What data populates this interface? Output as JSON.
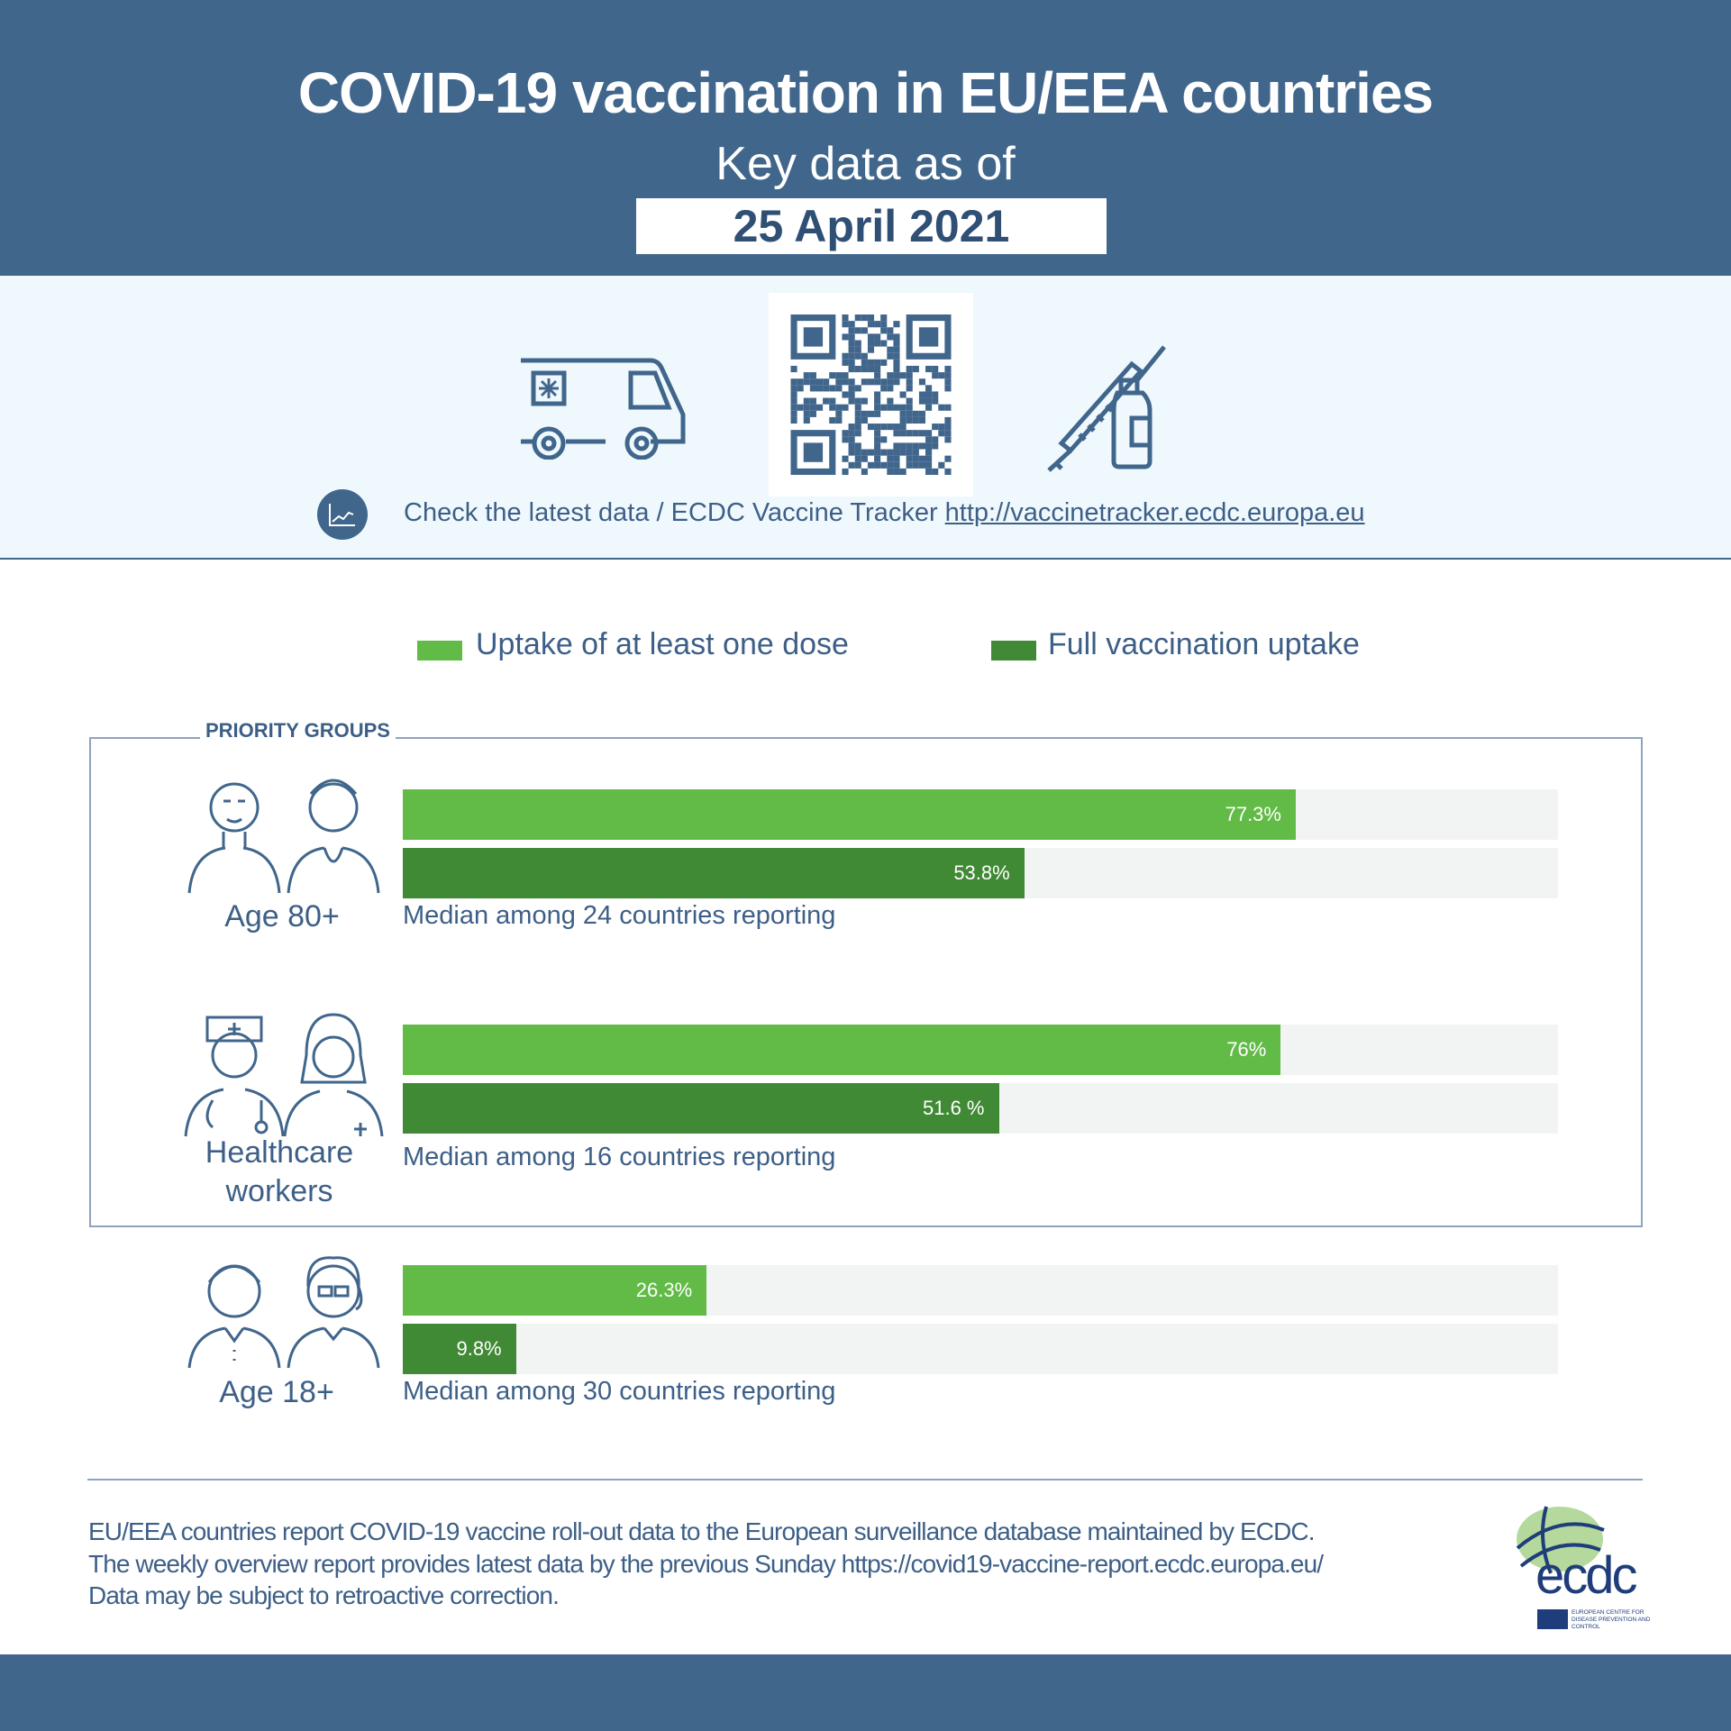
{
  "header": {
    "title": "COVID-19 vaccination in EU/EEA countries",
    "subtitle": "Key data as of",
    "date": "25 April 2021"
  },
  "tracker": {
    "text": "Check the latest data / ECDC Vaccine Tracker",
    "url": "http://vaccinetracker.ecdc.europa.eu"
  },
  "legend": {
    "one_dose": "Uptake of at least one dose",
    "full": "Full vaccination uptake"
  },
  "priority_label": "PRIORITY GROUPS",
  "colors": {
    "one_dose": "#62bb46",
    "full": "#418a35",
    "track": "#f2f4f3",
    "header": "#41668c"
  },
  "chart_data": {
    "type": "bar",
    "orientation": "horizontal",
    "xlim": [
      0,
      100
    ],
    "categories": [
      "Age 80+",
      "Healthcare workers",
      "Age 18+"
    ],
    "series": [
      {
        "name": "Uptake of at least one dose",
        "values": [
          77.3,
          76,
          26.3
        ],
        "labels": [
          "77.3%",
          "76%",
          "26.3%"
        ]
      },
      {
        "name": "Full vaccination uptake",
        "values": [
          53.8,
          51.6,
          9.8
        ],
        "labels": [
          "53.8%",
          "51.6 %",
          "9.8%"
        ]
      }
    ],
    "captions": [
      "Median among 24 countries reporting",
      "Median among 16 countries reporting",
      "Median among 30 countries reporting"
    ],
    "group_labels": [
      [
        "Age 80+"
      ],
      [
        "Healthcare",
        "workers"
      ],
      [
        "Age 18+"
      ]
    ]
  },
  "footer": {
    "lines": [
      "EU/EEA countries report COVID-19 vaccine roll-out data to the European surveillance database maintained by ECDC.",
      "The weekly overview report provides latest data by the previous Sunday https://covid19-vaccine-report.ecdc.europa.eu/",
      "Data may be subject to retroactive correction."
    ],
    "logo_text": "ecdc",
    "logo_sub": "EUROPEAN CENTRE FOR DISEASE PREVENTION AND CONTROL"
  }
}
